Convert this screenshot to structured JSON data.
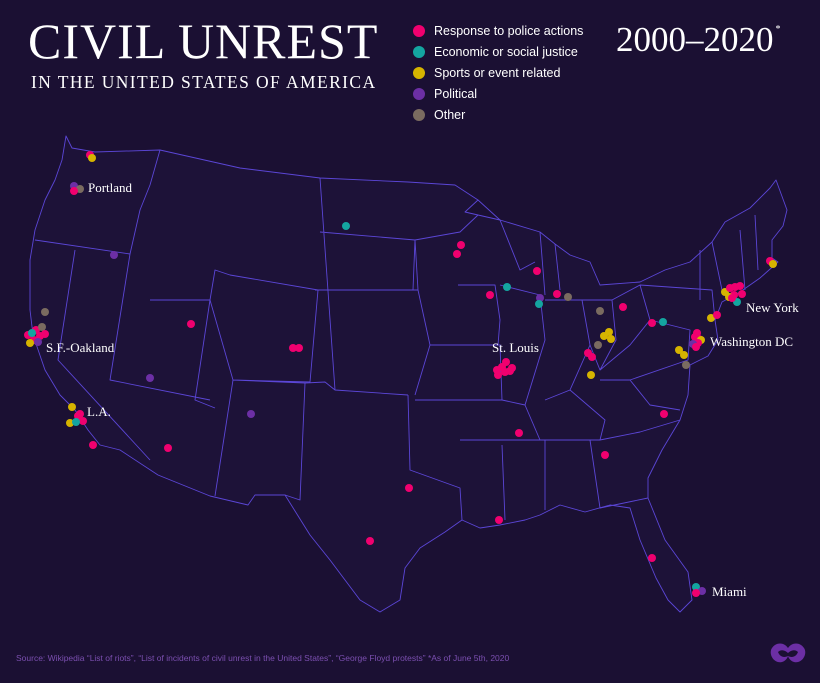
{
  "header": {
    "title": "CIVIL UNREST",
    "subtitle": "IN THE UNITED STATES OF AMERICA",
    "years": "2000–2020",
    "years_mark": "*"
  },
  "colors": {
    "background": "#1b1033",
    "map_fill": "#1d1238",
    "borders": "#5b46d6",
    "police": "#f0006f",
    "economic": "#14a5a0",
    "sports": "#d6b400",
    "political": "#6c2fa5",
    "other": "#7a6b60"
  },
  "legend": [
    {
      "key": "police",
      "label": "Response to police actions",
      "color": "#f0006f"
    },
    {
      "key": "economic",
      "label": "Economic or social justice",
      "color": "#14a5a0"
    },
    {
      "key": "sports",
      "label": "Sports or event related",
      "color": "#d6b400"
    },
    {
      "key": "political",
      "label": "Political",
      "color": "#6c2fa5"
    },
    {
      "key": "other",
      "label": "Other",
      "color": "#7a6b60"
    }
  ],
  "cities": {
    "portland": "Portland",
    "sf": "S.F.-Oakland",
    "la": "L.A.",
    "stlouis": "St. Louis",
    "newyork": "New York",
    "dc": "Washington DC",
    "miami": "Miami"
  },
  "source": "Source: Wikipedia “List of riots”, “List of incidents of civil unrest in the United States”, “George Floyd protests”    *As of June 5th, 2020",
  "logo_icon": "visual-capitalist-logo-icon"
}
